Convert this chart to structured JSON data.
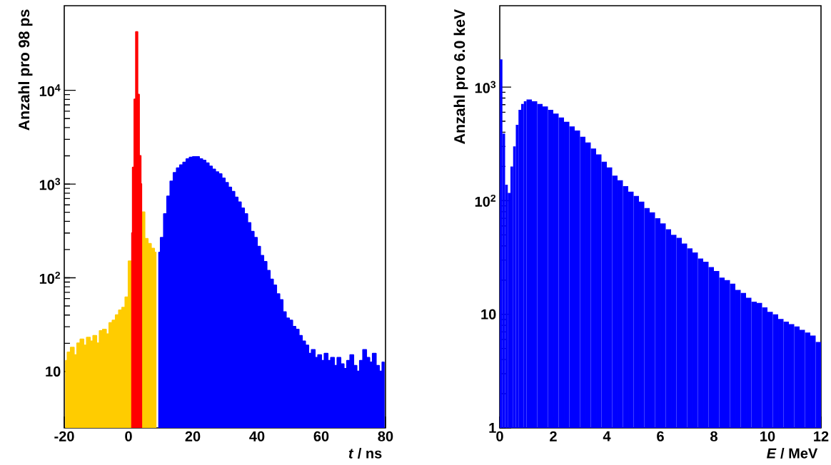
{
  "chart_data": [
    {
      "type": "area",
      "ylabel": "Anzahl pro 98 ps",
      "xlabel": "*t* / ns",
      "log": true,
      "grid": false,
      "xlim": [
        -20,
        80
      ],
      "ylim": [
        2.5,
        80000
      ],
      "xticks": [
        -20,
        0,
        20,
        40,
        60,
        80
      ],
      "yticks": [
        10,
        {
          "value": 100,
          "label": "10$^{2}$"
        },
        {
          "value": 1000,
          "label": "10$^{3}$"
        },
        {
          "value": 10000,
          "label": "10$^{4}$"
        }
      ],
      "series": [
        {
          "color": "#ffcc00",
          "x": [
            -19.5,
            -18.5,
            -17.5,
            -16.5,
            -15.5,
            -14.5,
            -13.5,
            -12.5,
            -11.5,
            -10.5,
            -9.5,
            -8.5,
            -7.5,
            -6.5,
            -5.5,
            -4.5,
            -3.5,
            -2.5,
            -1.5,
            -0.5,
            0.5,
            4.5,
            5.5,
            6.5,
            7.5,
            8.5
          ],
          "values": [
            13,
            16,
            18,
            15,
            20,
            22,
            19,
            23,
            21,
            24,
            20,
            27,
            28,
            25,
            33,
            35,
            40,
            45,
            48,
            62,
            150,
            500,
            260,
            230,
            205,
            186
          ]
        },
        {
          "color": "#ff0000",
          "x": [
            1.05,
            1.55,
            2.05,
            2.55,
            3.05,
            3.55,
            4.05
          ],
          "values": [
            300,
            1500,
            8000,
            42000,
            9000,
            2000,
            1000
          ]
        },
        {
          "color": "#0000ff",
          "x": [
            9.5,
            10.5,
            11.5,
            12.5,
            13.5,
            14.5,
            15.5,
            16.5,
            17.5,
            18.5,
            19.5,
            20.5,
            21.5,
            22.5,
            23.5,
            24.5,
            25.5,
            26.5,
            27.5,
            28.5,
            29.5,
            30.5,
            31.5,
            32.5,
            33.5,
            34.5,
            35.5,
            36.5,
            37.5,
            38.5,
            39.5,
            40.5,
            41.5,
            42.5,
            43.5,
            44.5,
            45.5,
            46.5,
            47.5,
            48.5,
            49.5,
            50.5,
            51.5,
            52.5,
            53.5,
            54.5,
            55.5,
            56.5,
            57.5,
            58.5,
            59.5,
            60.5,
            61.5,
            62.5,
            63.5,
            64.5,
            65.5,
            66.5,
            67.5,
            68.5,
            69.5,
            70.5,
            71.5,
            72.5,
            73.5,
            74.5,
            75.5,
            76.5,
            77.5,
            78.5,
            79.5
          ],
          "values": [
            186,
            267,
            480,
            740,
            1070,
            1320,
            1480,
            1590,
            1700,
            1850,
            1920,
            1950,
            1950,
            1850,
            1780,
            1670,
            1540,
            1430,
            1340,
            1280,
            1150,
            1030,
            920,
            830,
            720,
            640,
            550,
            480,
            385,
            310,
            267,
            215,
            172,
            148,
            119,
            96,
            83,
            67,
            58,
            43,
            37,
            35,
            30,
            28,
            24,
            21,
            19,
            15.5,
            17,
            14,
            15,
            13,
            15.5,
            13,
            14,
            11.5,
            14,
            12,
            10.7,
            13,
            15,
            11.5,
            10,
            13,
            17,
            14,
            12.5,
            15.5,
            11.5,
            10,
            12.5
          ]
        }
      ]
    },
    {
      "type": "histogram",
      "ylabel": "Anzahl pro 6.0 keV",
      "xlabel": "*E* / MeV",
      "log": true,
      "grid": false,
      "xlim": [
        0,
        12
      ],
      "ylim": [
        1,
        5200
      ],
      "xticks": [
        0,
        2,
        4,
        6,
        8,
        10,
        12
      ],
      "yticks": [
        1,
        10,
        {
          "value": 100,
          "label": "10$^{2}$"
        },
        {
          "value": 1000,
          "label": "10$^{3}$"
        }
      ],
      "color": "#0000ff",
      "bins": [
        0,
        0.1,
        0.2,
        0.3,
        0.4,
        0.5,
        0.6,
        0.7,
        0.8,
        0.9,
        1.0,
        1.2,
        1.4,
        1.6,
        1.8,
        2.0,
        2.2,
        2.4,
        2.6,
        2.8,
        3.0,
        3.2,
        3.4,
        3.6,
        3.8,
        4.0,
        4.2,
        4.4,
        4.6,
        4.8,
        5.0,
        5.2,
        5.4,
        5.6,
        5.8,
        6.0,
        6.2,
        6.4,
        6.6,
        6.8,
        7.0,
        7.2,
        7.4,
        7.6,
        7.8,
        8.0,
        8.2,
        8.4,
        8.6,
        8.8,
        9.0,
        9.2,
        9.4,
        9.6,
        9.8,
        10.0,
        10.2,
        10.4,
        10.6,
        10.8,
        11.0,
        11.2,
        11.4,
        11.6,
        11.8,
        12.0
      ],
      "values": [
        1750,
        390,
        138,
        117,
        200,
        300,
        465,
        630,
        710,
        750,
        776,
        750,
        710,
        675,
        630,
        585,
        540,
        495,
        450,
        415,
        365,
        325,
        288,
        255,
        220,
        196,
        166,
        151,
        134,
        120,
        110,
        98,
        86,
        79,
        70,
        63,
        56,
        50,
        47,
        42,
        38,
        35,
        31,
        29,
        26,
        24,
        21,
        20,
        18.6,
        16.4,
        15.4,
        14,
        12.9,
        12.6,
        11.5,
        10.5,
        10,
        9.1,
        8.6,
        8.2,
        7.8,
        7.3,
        6.9,
        6.5,
        5.7
      ]
    }
  ]
}
